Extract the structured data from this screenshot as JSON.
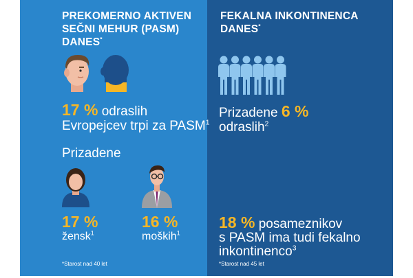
{
  "left": {
    "heading_line1": "PREKOMERNO AKTIVEN",
    "heading_line2": "SEČNI MEHUR (PASM)",
    "heading_line3": "DANES",
    "heading_mark": "*",
    "stat_value": "17 %",
    "stat_text1": " odraslih",
    "stat_text2": "Evropejcev trpi za PASM",
    "stat_ref": "1",
    "affected_label": "Prizadene",
    "women_value": "17 %",
    "women_text": "žensk",
    "women_ref": "1",
    "men_value": "16 %",
    "men_text": "moških",
    "men_ref": "1",
    "footnote": "*Starost nad 40 let"
  },
  "right": {
    "heading_line1": "FEKALNA INKONTINENCA",
    "heading_line2": "DANES",
    "heading_mark": "*",
    "stat_text1": "Prizadene ",
    "stat_value": "6 %",
    "stat_text2": "odraslih",
    "stat_ref": "2",
    "bottom_value": "18 %",
    "bottom_text1": " posameznikov",
    "bottom_text2": "s PASM ima tudi fekalno",
    "bottom_text3": "inkontinenco",
    "bottom_ref": "3",
    "footnote": "*Starost nad 45 let"
  },
  "colors": {
    "left_panel": "#2a86cc",
    "right_panel": "#1d5893",
    "accent": "#f6b626",
    "figure": "#8fc6ee"
  },
  "icons": [
    "man-head-front-icon",
    "man-head-back-icon",
    "people-group-icon",
    "woman-icon",
    "man-glasses-icon"
  ]
}
